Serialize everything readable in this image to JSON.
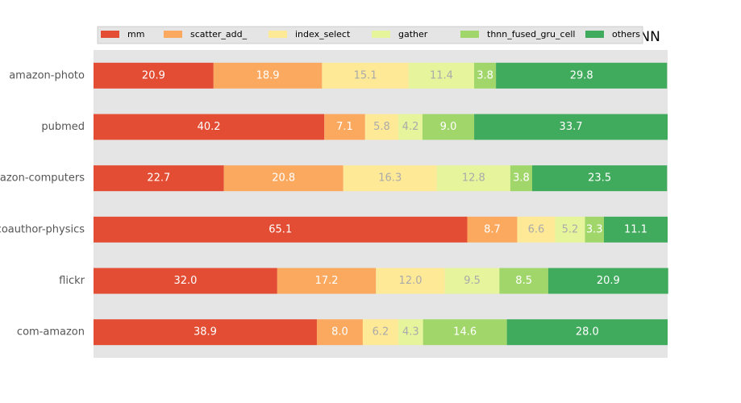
{
  "chart_data": {
    "type": "stacked-barh",
    "title": "GGNN",
    "categories": [
      "amazon-photo",
      "pubmed",
      "amazon-computers",
      "coauthor-physics",
      "flickr",
      "com-amazon"
    ],
    "xlim": [
      0,
      100
    ],
    "series": [
      {
        "name": "mm",
        "color": "#e34d34",
        "label_color": "#ffffff",
        "values": [
          20.9,
          40.2,
          22.7,
          65.1,
          32.0,
          38.9
        ],
        "value_labels": [
          "20.9",
          "40.2",
          "22.7",
          "65.1",
          "32.0",
          "38.9"
        ]
      },
      {
        "name": "scatter_add_",
        "color": "#fca960",
        "label_color": "#ffffff",
        "values": [
          18.9,
          7.1,
          20.8,
          8.7,
          17.2,
          8.0
        ],
        "value_labels": [
          "18.9",
          "7.1",
          "20.8",
          "8.7",
          "17.2",
          "8.0"
        ]
      },
      {
        "name": "index_select",
        "color": "#fee997",
        "label_color": "#aaaaaa",
        "values": [
          15.1,
          5.8,
          16.3,
          6.6,
          12.0,
          6.2
        ],
        "value_labels": [
          "15.1",
          "5.8",
          "16.3",
          "6.6",
          "12.0",
          "6.2"
        ]
      },
      {
        "name": "gather",
        "color": "#e6f49c",
        "label_color": "#aaaaaa",
        "values": [
          11.4,
          4.2,
          12.8,
          5.2,
          9.5,
          4.3
        ],
        "value_labels": [
          "11.4",
          "4.2",
          "12.8",
          "5.2",
          "9.5",
          "4.3"
        ]
      },
      {
        "name": "thnn_fused_gru_cell",
        "color": "#a1d76a",
        "label_color": "#ffffff",
        "values": [
          3.8,
          9.0,
          3.8,
          3.3,
          8.5,
          14.6
        ],
        "value_labels": [
          "3.8",
          "9.0",
          "3.8",
          "3.3",
          "8.5",
          "14.6"
        ]
      },
      {
        "name": "others",
        "color": "#41ab5d",
        "label_color": "#ffffff",
        "values": [
          29.8,
          33.7,
          23.5,
          11.1,
          20.9,
          28.0
        ],
        "value_labels": [
          "29.8",
          "33.7",
          "23.5",
          "11.1",
          "20.9",
          "28.0"
        ]
      }
    ]
  }
}
